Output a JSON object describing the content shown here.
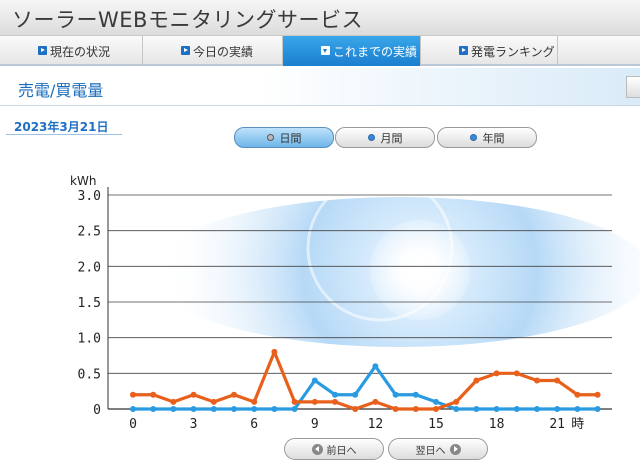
{
  "app": {
    "title": "ソーラーWEBモニタリングサービス"
  },
  "nav": {
    "items": [
      {
        "label": "現在の状況",
        "icon": "play-icon",
        "active": false
      },
      {
        "label": "今日の実績",
        "icon": "play-icon",
        "active": false
      },
      {
        "label": "これまでの実績",
        "icon": "dropdown-icon",
        "active": true
      },
      {
        "label": "発電ランキング",
        "icon": "play-icon",
        "active": false
      }
    ]
  },
  "section": {
    "title": "売電/買電量"
  },
  "date_label": "2023年3月21日",
  "period_buttons": [
    {
      "label": "日間",
      "active": true
    },
    {
      "label": "月間",
      "active": false
    },
    {
      "label": "年間",
      "active": false
    }
  ],
  "bottom_nav": {
    "prev_label": "前日へ",
    "next_label": "翌日へ"
  },
  "colors": {
    "accent": "#1a7fcf",
    "sell_series": "#e8601c",
    "buy_series": "#2a9be0",
    "title_blue": "#1a6dbd"
  },
  "chart_data": {
    "type": "line",
    "ylabel": "kWh",
    "xlabel_suffix": "時",
    "ylim": [
      0,
      3.0
    ],
    "yticks": [
      "0",
      "0.5",
      "1.0",
      "1.5",
      "2.0",
      "2.5",
      "3.0"
    ],
    "xticks": [
      "0",
      "3",
      "6",
      "9",
      "12",
      "15",
      "18",
      "21"
    ],
    "x": [
      0,
      1,
      2,
      3,
      4,
      5,
      6,
      7,
      8,
      9,
      10,
      11,
      12,
      13,
      14,
      15,
      16,
      17,
      18,
      19,
      20,
      21,
      22,
      23
    ],
    "series": [
      {
        "color": "#e8601c",
        "values": [
          0.2,
          0.2,
          0.1,
          0.2,
          0.1,
          0.2,
          0.1,
          0.8,
          0.1,
          0.1,
          0.1,
          0.0,
          0.1,
          0.0,
          0.0,
          0.0,
          0.1,
          0.4,
          0.5,
          0.5,
          0.4,
          0.4,
          0.2,
          0.2
        ]
      },
      {
        "color": "#2a9be0",
        "values": [
          0,
          0,
          0,
          0,
          0,
          0,
          0,
          0,
          0.0,
          0.4,
          0.2,
          0.2,
          0.6,
          0.2,
          0.2,
          0.1,
          0.0,
          0,
          0,
          0,
          0,
          0,
          0,
          0
        ]
      }
    ],
    "grid": true
  }
}
